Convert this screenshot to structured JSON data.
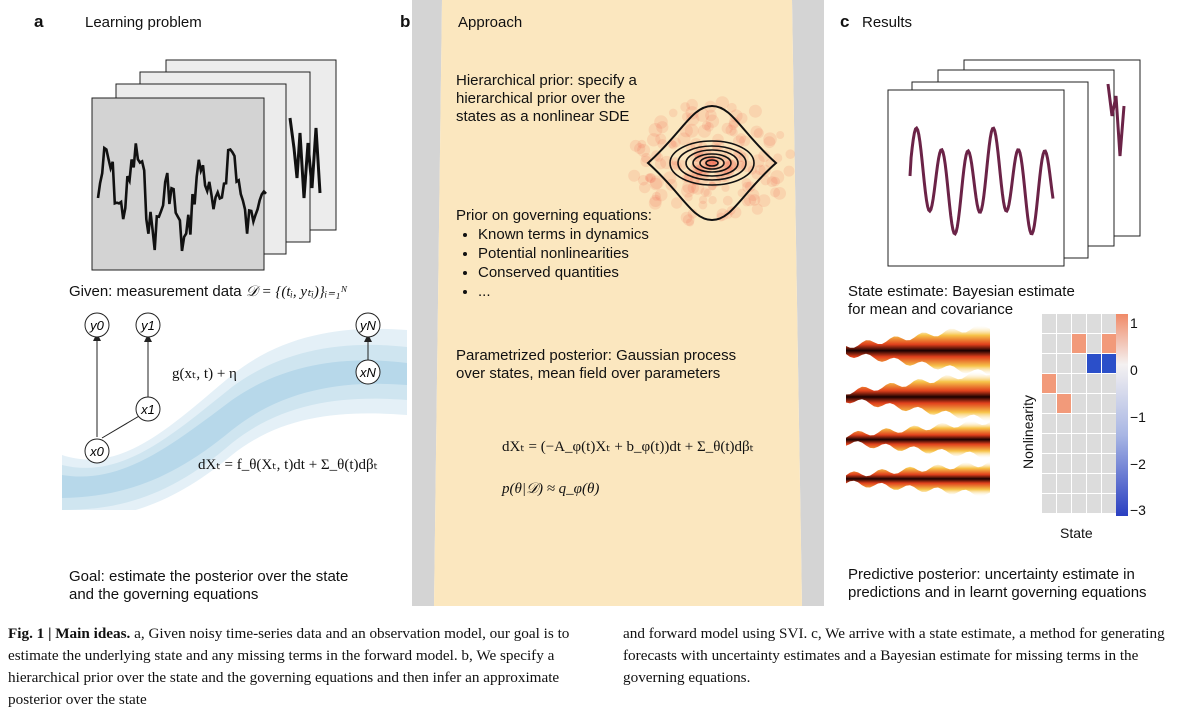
{
  "panel_a": {
    "letter": "a",
    "header": "Learning problem",
    "given_prefix": "Given: measurement data",
    "given_math": "𝒟 = {(tᵢ, yₜᵢ)}ᵢ₌₁ᴺ",
    "nodes": {
      "y0": "y0",
      "y1": "y1",
      "yN": "yN",
      "x0": "x0",
      "x1": "x1",
      "xN": "xN"
    },
    "obs_model": "g(xₜ, t) + η",
    "sde": "dXₜ = f_θ(Xₜ, t)dt + Σ_θ(t)dβₜ",
    "goal": [
      "Goal: estimate the posterior over the state",
      "and the governing equations"
    ]
  },
  "panel_b": {
    "letter": "b",
    "header": "Approach",
    "hier_prior": [
      "Hierarchical prior: specify a",
      "hierarchical prior over the",
      "states as a nonlinear SDE"
    ],
    "prior_title": "Prior on governing equations:",
    "prior_items": [
      "Known terms in dynamics",
      "Potential nonlinearities",
      "Conserved quantities",
      "..."
    ],
    "posterior": [
      "Parametrized posterior: Gaussian process",
      "over states, mean field over parameters"
    ],
    "eq1": "dXₜ = (−A_φ(t)Xₜ + b_φ(t))dt + Σ_θ(t)dβₜ",
    "eq2": "p(θ|𝒟) ≈ q_φ(θ)"
  },
  "panel_c": {
    "letter": "c",
    "header": "Results",
    "state_estimate": [
      "State estimate: Bayesian estimate",
      "for mean and covariance"
    ],
    "heatmap_ylabel": "Nonlinearity",
    "heatmap_xlabel": "State",
    "colorbar_ticks": [
      "1",
      "0",
      "−1",
      "−2",
      "−3"
    ],
    "predictive": [
      "Predictive posterior: uncertainty estimate in",
      "predictions and in learnt governing equations"
    ]
  },
  "caption": {
    "fig_label": "Fig. 1 | Main ideas.",
    "left": " a, Given noisy time-series data and an observation model, our goal is to estimate the underlying state and any missing terms in the forward model. b, We specify a hierarchical prior over the state and the governing equations and then infer an approximate posterior over the state",
    "right": "and forward model using SVI. c, We arrive with a state estimate, a method for generating forecasts with uncertainty estimates and a Bayesian estimate for missing terms in the governing equations."
  },
  "colors": {
    "panel_b_bg": "#fbe7bf",
    "panel_b_side": "#d4d4d4",
    "trace_c": "#6b2347",
    "heat_pos": "#f29a7a",
    "heat_neg": "#2b4fc9",
    "cell_empty": "#dcdcdc"
  }
}
